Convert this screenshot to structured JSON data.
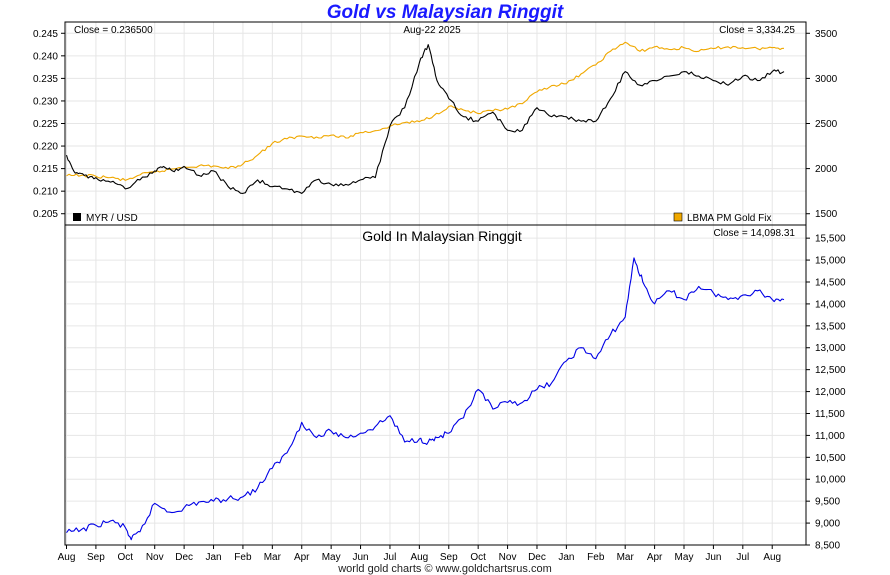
{
  "title": "Gold vs Malaysian Ringgit",
  "footer": "world gold charts © www.goldchartsrus.com",
  "colors": {
    "myr": "#000000",
    "gold": "#f0a800",
    "gold_myr": "#0000e6",
    "title": "#1a1aff"
  },
  "chart_data": [
    {
      "type": "line",
      "title": "",
      "date_label": "Aug-22  2025",
      "x_ticks": [
        "Aug",
        "Sep",
        "Oct",
        "Nov",
        "Dec",
        "Jan",
        "Feb",
        "Mar",
        "Apr",
        "May",
        "Jun",
        "Jul",
        "Aug",
        "Sep",
        "Oct",
        "Nov",
        "Dec",
        "Jan",
        "Feb",
        "Mar",
        "Apr",
        "May",
        "Jun",
        "Jul",
        "Aug"
      ],
      "left_axis": {
        "ylim": [
          0.2025,
          0.2475
        ],
        "ticks": [
          "0.205",
          "0.210",
          "0.215",
          "0.220",
          "0.225",
          "0.230",
          "0.235",
          "0.240",
          "0.245"
        ]
      },
      "right_axis": {
        "ylim": [
          1375,
          3625
        ],
        "ticks": [
          "1500",
          "2000",
          "2500",
          "3000",
          "3500"
        ]
      },
      "left_readout": "Close = 0.236500",
      "right_readout": "Close = 3,334.25",
      "series": [
        {
          "name": "MYR / USD",
          "axis": "left",
          "x": [
            0,
            0.3,
            0.6,
            1,
            1.5,
            2,
            2.5,
            3,
            3.3,
            3.6,
            4,
            4.5,
            5,
            5.5,
            6,
            6.5,
            7,
            7.5,
            8,
            8.5,
            9,
            9.5,
            10,
            10.5,
            11,
            11.5,
            12,
            12.3,
            12.6,
            13,
            13.5,
            14,
            14.5,
            15,
            15.5,
            16,
            16.5,
            17,
            17.5,
            18,
            18.5,
            19,
            19.5,
            20,
            20.5,
            21,
            21.5,
            22,
            22.5,
            23,
            23.5,
            24,
            24.4
          ],
          "values": [
            0.218,
            0.214,
            0.2135,
            0.213,
            0.212,
            0.2105,
            0.2125,
            0.2145,
            0.2155,
            0.2145,
            0.2155,
            0.2135,
            0.2145,
            0.211,
            0.2095,
            0.2125,
            0.211,
            0.2105,
            0.2095,
            0.2125,
            0.2115,
            0.2115,
            0.2125,
            0.213,
            0.2245,
            0.2285,
            0.2385,
            0.2425,
            0.2345,
            0.2305,
            0.2265,
            0.2255,
            0.2275,
            0.2235,
            0.2235,
            0.2285,
            0.2265,
            0.2265,
            0.2255,
            0.2255,
            0.2305,
            0.2365,
            0.2335,
            0.2345,
            0.2355,
            0.2365,
            0.2355,
            0.2345,
            0.2335,
            0.2355,
            0.2345,
            0.2365,
            0.2365
          ]
        },
        {
          "name": "LBMA PM Gold Fix",
          "axis": "right",
          "x": [
            0,
            0.5,
            1,
            1.5,
            2,
            2.5,
            3,
            3.5,
            4,
            4.5,
            5,
            5.5,
            6,
            6.5,
            7,
            7.5,
            8,
            8.5,
            9,
            9.5,
            10,
            10.5,
            11,
            11.5,
            12,
            12.5,
            13,
            13.5,
            14,
            14.5,
            15,
            15.5,
            16,
            16.5,
            17,
            17.5,
            18,
            18.5,
            19,
            19.5,
            20,
            20.5,
            21,
            21.5,
            22,
            22.5,
            23,
            23.5,
            24,
            24.4
          ],
          "values": [
            1920,
            1925,
            1915,
            1900,
            1870,
            1930,
            1960,
            1990,
            2020,
            2030,
            2030,
            2000,
            2050,
            2150,
            2280,
            2330,
            2360,
            2350,
            2370,
            2340,
            2400,
            2420,
            2470,
            2510,
            2520,
            2590,
            2690,
            2650,
            2610,
            2640,
            2660,
            2720,
            2850,
            2920,
            2940,
            3050,
            3150,
            3300,
            3400,
            3300,
            3350,
            3320,
            3340,
            3300,
            3330,
            3350,
            3340,
            3330,
            3340,
            3334
          ]
        }
      ]
    },
    {
      "type": "line",
      "title": "Gold In Malaysian Ringgit",
      "date_label": "",
      "x_ticks": [
        "Aug",
        "Sep",
        "Oct",
        "Nov",
        "Dec",
        "Jan",
        "Feb",
        "Mar",
        "Apr",
        "May",
        "Jun",
        "Jul",
        "Aug",
        "Sep",
        "Oct",
        "Nov",
        "Dec",
        "Jan",
        "Feb",
        "Mar",
        "Apr",
        "May",
        "Jun",
        "Jul",
        "Aug"
      ],
      "ylim": [
        8500,
        15800
      ],
      "y_ticks": [
        "8,500",
        "9,000",
        "9,500",
        "10,000",
        "10,500",
        "11,000",
        "11,500",
        "12,000",
        "12,500",
        "13,000",
        "13,500",
        "14,000",
        "14,500",
        "15,000",
        "15,500"
      ],
      "right_readout": "Close = 14,098.31",
      "series": [
        {
          "name": "Gold In Malaysian Ringgit",
          "x": [
            0,
            0.5,
            1,
            1.5,
            2,
            2.2,
            2.5,
            3,
            3.5,
            4,
            4.5,
            5,
            5.5,
            6,
            6.5,
            7,
            7.5,
            8,
            8.5,
            9,
            9.5,
            10,
            10.5,
            11,
            11.5,
            12,
            12.3,
            12.6,
            13,
            13.5,
            14,
            14.5,
            15,
            15.5,
            16,
            16.5,
            17,
            17.5,
            18,
            18.5,
            19,
            19.3,
            19.6,
            20,
            20.5,
            21,
            21.5,
            22,
            22.5,
            23,
            23.5,
            24,
            24.4
          ],
          "values": [
            8780,
            8850,
            8950,
            9050,
            8900,
            8620,
            8800,
            9450,
            9250,
            9350,
            9480,
            9500,
            9560,
            9600,
            9800,
            10250,
            10600,
            11300,
            10950,
            11100,
            10950,
            11050,
            11200,
            11450,
            10850,
            10920,
            10850,
            10950,
            11050,
            11400,
            12050,
            11600,
            11750,
            11750,
            12050,
            12200,
            12700,
            13000,
            12750,
            13300,
            13700,
            15050,
            14500,
            14000,
            14300,
            14100,
            14400,
            14250,
            14100,
            14200,
            14300,
            14100,
            14098
          ]
        }
      ]
    }
  ]
}
